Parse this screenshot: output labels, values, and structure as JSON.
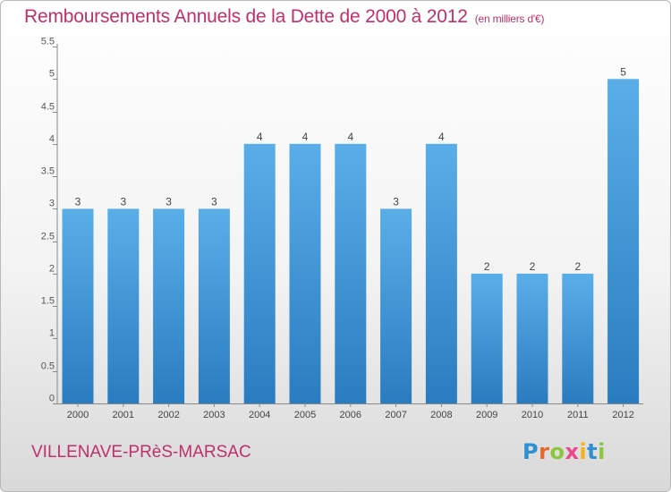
{
  "header": {
    "title": "Remboursements Annuels de la Dette de 2000 à 2012",
    "unit": "(en milliers d'€)"
  },
  "footer": {
    "city": "VILLENAVE-PRèS-MARSAC",
    "logo": "Proxiti"
  },
  "colors": {
    "bar_light": "#5aaee8",
    "bar_dark": "#2a7cc0",
    "title": "#c0306a"
  },
  "chart_data": {
    "type": "bar",
    "title": "Remboursements Annuels de la Dette de 2000 à 2012",
    "subtitle": "(en milliers d'€)",
    "xlabel": "",
    "ylabel": "",
    "categories": [
      "2000",
      "2001",
      "2002",
      "2003",
      "2004",
      "2005",
      "2006",
      "2007",
      "2008",
      "2009",
      "2010",
      "2011",
      "2012"
    ],
    "values": [
      3,
      3,
      3,
      3,
      4,
      4,
      4,
      3,
      4,
      2,
      2,
      2,
      5
    ],
    "data_labels": [
      "3",
      "3",
      "3",
      "3",
      "4",
      "4",
      "4",
      "3",
      "4",
      "2",
      "2",
      "2",
      "5"
    ],
    "ylim": [
      0,
      5.5
    ],
    "yticks": [
      0,
      0.5,
      1,
      1.5,
      2,
      2.5,
      3,
      3.5,
      4,
      4.5,
      5,
      5.5
    ],
    "ytick_labels": [
      "0",
      "0.5",
      "1",
      "1.5",
      "2",
      "2.5",
      "3",
      "3.5",
      "4",
      "4.5",
      "5",
      "5.5"
    ],
    "grid": false,
    "legend": "none"
  }
}
